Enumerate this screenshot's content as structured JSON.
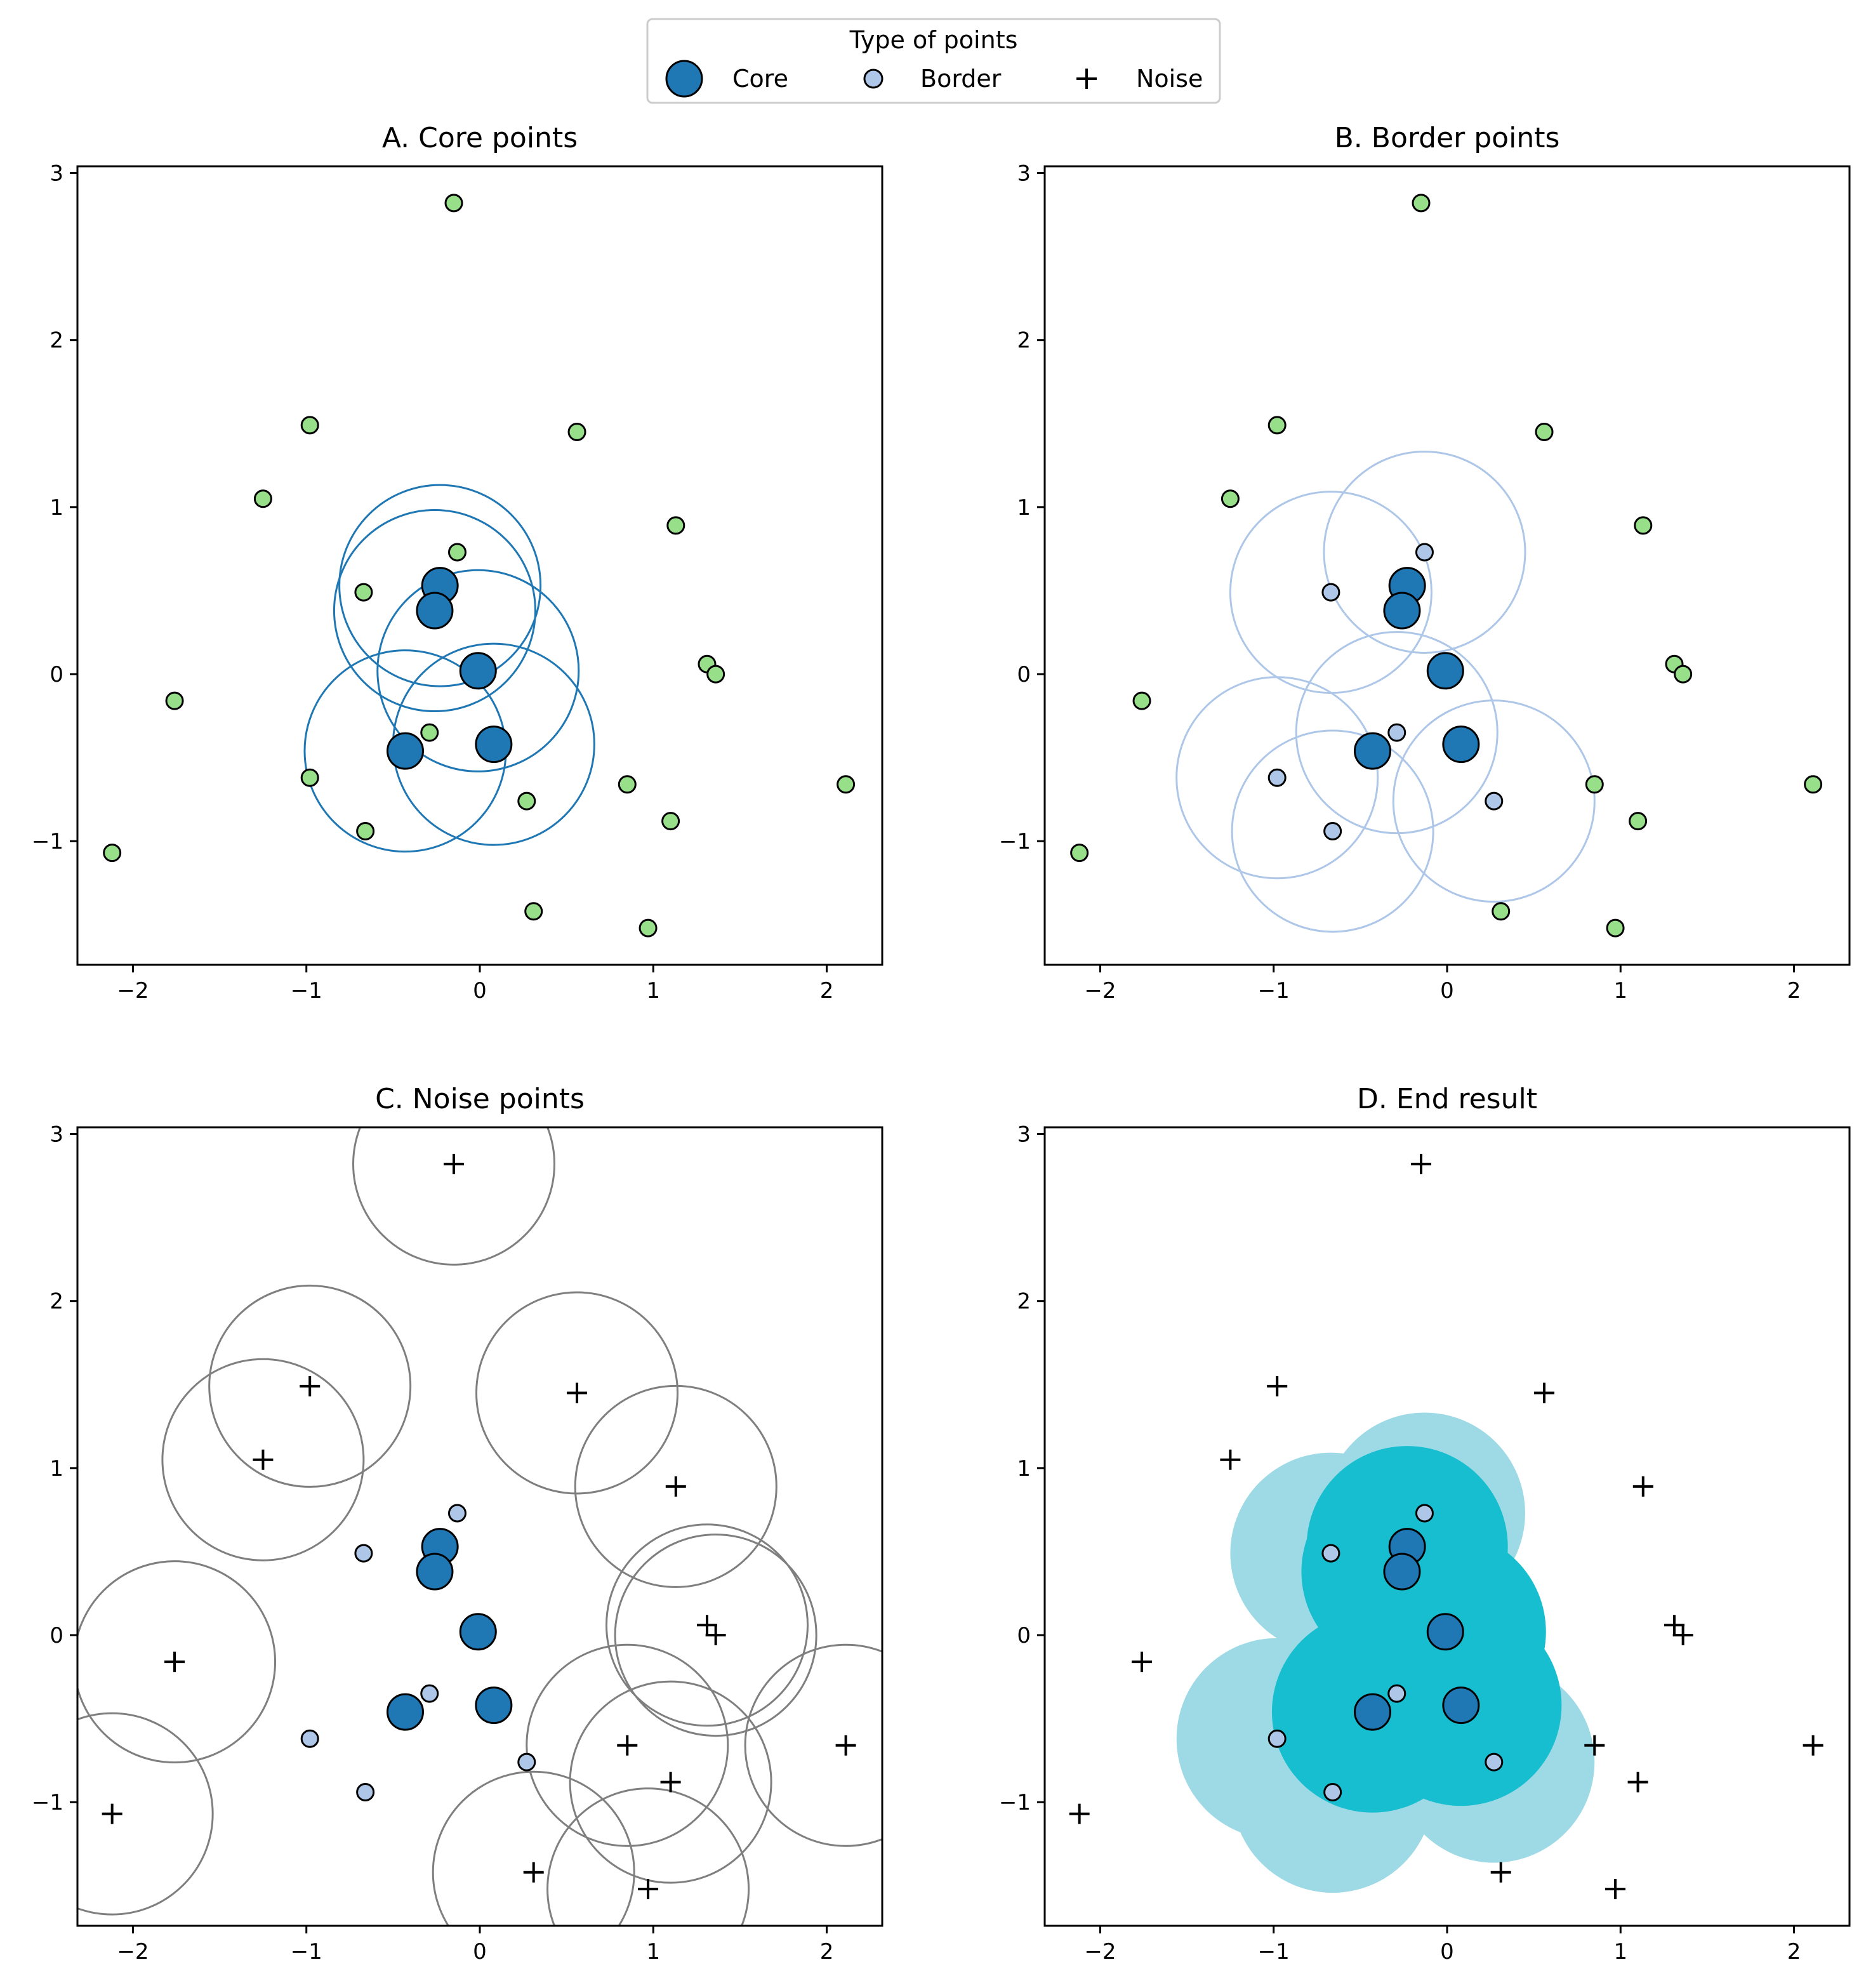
{
  "legend": {
    "title": "Type of points",
    "placement": "top-center",
    "entries": [
      {
        "label": "Core",
        "marker": "large-circle"
      },
      {
        "label": "Border",
        "marker": "small-circle"
      },
      {
        "label": "Noise",
        "marker": "plus"
      }
    ]
  },
  "colors": {
    "core": "#1f77b4",
    "border": "#aec7e8",
    "unclassified": "#98df8a",
    "noise_circle": "#7f7f7f",
    "cluster_core_fill": "#17becf",
    "cluster_border_fill": "#9edae5",
    "marker_edge": "#000000"
  },
  "chart_data": {
    "type": "scatter",
    "xlim": [
      -2.32,
      2.32
    ],
    "ylim": [
      -1.74,
      3.04
    ],
    "xticks": [
      -2,
      -1,
      0,
      1,
      2
    ],
    "yticks": [
      -1,
      0,
      1,
      2,
      3
    ],
    "xtick_labels": [
      "−2",
      "−1",
      "0",
      "1",
      "2"
    ],
    "ytick_labels": [
      "−1",
      "0",
      "1",
      "2",
      "3"
    ],
    "eps": 0.58,
    "panels": [
      {
        "title": "A. Core points",
        "mode": "core"
      },
      {
        "title": "B. Border points",
        "mode": "border"
      },
      {
        "title": "C. Noise points",
        "mode": "noise"
      },
      {
        "title": "D. End result",
        "mode": "result"
      }
    ],
    "points": {
      "core": [
        {
          "x": -0.23,
          "y": 0.53
        },
        {
          "x": -0.26,
          "y": 0.38
        },
        {
          "x": -0.01,
          "y": 0.02
        },
        {
          "x": 0.08,
          "y": -0.42
        },
        {
          "x": -0.43,
          "y": -0.46
        }
      ],
      "border": [
        {
          "x": -0.13,
          "y": 0.73
        },
        {
          "x": -0.67,
          "y": 0.49
        },
        {
          "x": -0.29,
          "y": -0.35
        },
        {
          "x": -0.98,
          "y": -0.62
        },
        {
          "x": 0.27,
          "y": -0.76
        },
        {
          "x": -0.66,
          "y": -0.94
        }
      ],
      "noise": [
        {
          "x": -0.15,
          "y": 2.82
        },
        {
          "x": -0.98,
          "y": 1.49
        },
        {
          "x": 0.56,
          "y": 1.45
        },
        {
          "x": -1.25,
          "y": 1.05
        },
        {
          "x": 1.13,
          "y": 0.89
        },
        {
          "x": 1.31,
          "y": 0.06
        },
        {
          "x": 1.36,
          "y": 0.0
        },
        {
          "x": -1.76,
          "y": -0.16
        },
        {
          "x": 0.85,
          "y": -0.66
        },
        {
          "x": 2.11,
          "y": -0.66
        },
        {
          "x": 1.1,
          "y": -0.88
        },
        {
          "x": -2.12,
          "y": -1.07
        },
        {
          "x": 0.31,
          "y": -1.42
        },
        {
          "x": 0.97,
          "y": -1.52
        }
      ]
    }
  }
}
